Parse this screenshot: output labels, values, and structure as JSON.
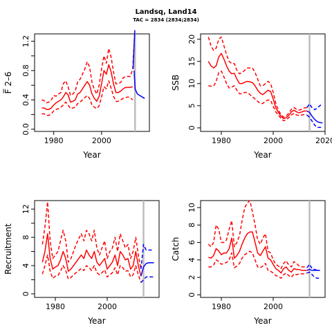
{
  "title": "Landsq, Land14",
  "subtitle": "TAC = 2834 (2834;2834)",
  "chart_data": [
    {
      "type": "line",
      "ylabel": "F̅ 2–6",
      "xlabel": "Year",
      "xlim": [
        1972,
        2020
      ],
      "ylim": [
        -0.03,
        1.3
      ],
      "xticks": [
        1980,
        2000
      ],
      "yticks": [
        0.0,
        0.2,
        0.4,
        0.6,
        0.8,
        1.0,
        1.2
      ],
      "ytick_labels": [
        "0.0",
        "",
        "0.4",
        "",
        "0.8",
        "",
        "1.2"
      ],
      "vline": 2014,
      "x": [
        1975,
        1976,
        1977,
        1978,
        1979,
        1980,
        1981,
        1982,
        1983,
        1984,
        1985,
        1986,
        1987,
        1988,
        1989,
        1990,
        1991,
        1992,
        1993,
        1994,
        1995,
        1996,
        1997,
        1998,
        1999,
        2000,
        2001,
        2002,
        2003,
        2004,
        2005,
        2006,
        2007,
        2008,
        2009,
        2010,
        2011,
        2012,
        2013
      ],
      "series": [
        {
          "values": [
            0.29,
            0.29,
            0.27,
            0.27,
            0.29,
            0.33,
            0.36,
            0.38,
            0.4,
            0.44,
            0.5,
            0.47,
            0.37,
            0.38,
            0.4,
            0.48,
            0.5,
            0.55,
            0.6,
            0.65,
            0.6,
            0.48,
            0.42,
            0.38,
            0.45,
            0.62,
            0.8,
            0.75,
            0.88,
            0.78,
            0.62,
            0.5,
            0.5,
            0.52,
            0.55,
            0.57,
            0.57,
            0.57,
            0.58
          ],
          "color": "#ff0000",
          "style": "solid"
        },
        {
          "values": [
            0.4,
            0.39,
            0.36,
            0.37,
            0.4,
            0.46,
            0.45,
            0.48,
            0.5,
            0.62,
            0.66,
            0.58,
            0.46,
            0.48,
            0.52,
            0.65,
            0.68,
            0.75,
            0.82,
            0.92,
            0.85,
            0.64,
            0.54,
            0.48,
            0.6,
            0.82,
            1.0,
            0.9,
            1.1,
            0.98,
            0.78,
            0.62,
            0.62,
            0.64,
            0.7,
            0.72,
            0.72,
            0.72,
            0.82
          ],
          "color": "#ff0000",
          "style": "dashed"
        },
        {
          "values": [
            0.21,
            0.21,
            0.19,
            0.19,
            0.21,
            0.25,
            0.27,
            0.28,
            0.3,
            0.33,
            0.37,
            0.33,
            0.28,
            0.29,
            0.3,
            0.35,
            0.37,
            0.4,
            0.43,
            0.46,
            0.42,
            0.33,
            0.3,
            0.28,
            0.32,
            0.44,
            0.58,
            0.55,
            0.66,
            0.56,
            0.45,
            0.38,
            0.38,
            0.4,
            0.42,
            0.43,
            0.44,
            0.43,
            0.4
          ],
          "color": "#ff0000",
          "style": "dashed"
        }
      ],
      "projection": [
        {
          "x": [
            2013.6,
            2014,
            2015,
            2016,
            2017,
            2018
          ],
          "values": [
            0.8,
            0.55,
            0.48,
            0.46,
            0.44,
            0.42
          ],
          "color": "#0000ff",
          "style": "solid"
        },
        {
          "x": [
            2013.2,
            2013.6,
            2013.9
          ],
          "values": [
            0.82,
            1.15,
            1.35
          ],
          "color": "#0000ff",
          "style": "solid"
        }
      ],
      "projection_upper_red": {
        "x": [
          2013,
          2013.5,
          2013.9
        ],
        "values": [
          0.82,
          1.1,
          1.35
        ]
      }
    },
    {
      "type": "line",
      "ylabel": "SSB",
      "xlabel": "Year",
      "xlim": [
        1972,
        2020
      ],
      "ylim": [
        -0.8,
        21.2
      ],
      "xticks": [
        1980,
        2000,
        2020
      ],
      "yticks": [
        0,
        5,
        10,
        15,
        20
      ],
      "ytick_labels": [
        "0",
        "5",
        "10",
        "15",
        "20"
      ],
      "vline": 2014,
      "x": [
        1975,
        1976,
        1977,
        1978,
        1979,
        1980,
        1981,
        1982,
        1983,
        1984,
        1985,
        1986,
        1987,
        1988,
        1989,
        1990,
        1991,
        1992,
        1993,
        1994,
        1995,
        1996,
        1997,
        1998,
        1999,
        2000,
        2001,
        2002,
        2003,
        2004,
        2005,
        2006,
        2007,
        2008,
        2009,
        2010,
        2011,
        2012,
        2013
      ],
      "series": [
        {
          "values": [
            15.0,
            14.0,
            13.5,
            14.0,
            16.0,
            16.8,
            15.5,
            14.0,
            12.8,
            12.2,
            12.3,
            11.0,
            10.0,
            10.0,
            10.3,
            10.5,
            10.4,
            10.2,
            9.5,
            8.5,
            7.8,
            7.5,
            8.0,
            8.5,
            8.2,
            6.5,
            4.5,
            3.5,
            2.6,
            2.1,
            2.3,
            2.8,
            3.6,
            4.0,
            3.6,
            3.4,
            3.6,
            3.8,
            3.8
          ],
          "color": "#ff0000",
          "style": "solid"
        },
        {
          "values": [
            20.5,
            18.5,
            17.5,
            18.0,
            20.0,
            20.5,
            18.5,
            16.5,
            15.0,
            14.5,
            14.5,
            13.0,
            12.2,
            12.5,
            13.0,
            13.5,
            13.5,
            13.5,
            12.5,
            11.0,
            9.5,
            9.5,
            10.0,
            10.5,
            10.0,
            8.0,
            5.5,
            4.0,
            3.0,
            2.4,
            2.7,
            3.3,
            4.2,
            4.6,
            4.2,
            4.0,
            4.2,
            4.5,
            4.6
          ],
          "color": "#ff0000",
          "style": "dashed"
        },
        {
          "values": [
            9.5,
            9.4,
            9.4,
            10.5,
            12.5,
            12.8,
            11.5,
            10.0,
            9.0,
            9.2,
            9.5,
            8.5,
            7.7,
            7.7,
            8.0,
            8.0,
            7.5,
            7.0,
            6.5,
            6.0,
            5.5,
            5.5,
            6.0,
            6.3,
            6.2,
            4.8,
            3.6,
            2.9,
            2.1,
            1.6,
            1.8,
            2.3,
            2.9,
            3.3,
            2.9,
            2.8,
            2.9,
            3.0,
            2.9
          ],
          "color": "#ff0000",
          "style": "dashed"
        }
      ],
      "projection": [
        {
          "x": [
            2013,
            2014,
            2015,
            2016,
            2017,
            2018,
            2019
          ],
          "values": [
            3.8,
            3.5,
            2.6,
            1.9,
            1.4,
            1.2,
            1.1
          ],
          "color": "#0000ff",
          "style": "solid"
        },
        {
          "x": [
            2013,
            2014,
            2015,
            2016,
            2017,
            2018,
            2019
          ],
          "values": [
            4.6,
            5.4,
            4.5,
            4.1,
            4.5,
            5.0,
            5.5
          ],
          "color": "#0000ff",
          "style": "dashed"
        },
        {
          "x": [
            2013,
            2014,
            2015,
            2016,
            2017,
            2018,
            2019
          ],
          "values": [
            2.9,
            2.4,
            1.5,
            0.6,
            0.1,
            0.1,
            0.1
          ],
          "color": "#0000ff",
          "style": "dashed"
        }
      ]
    },
    {
      "type": "line",
      "ylabel": "Recruitment",
      "xlabel": "Year",
      "xlim": [
        1972,
        2020
      ],
      "ylim": [
        -0.5,
        13.2
      ],
      "xticks": [
        1980,
        2000
      ],
      "yticks": [
        0,
        2,
        4,
        6,
        8,
        10,
        12
      ],
      "ytick_labels": [
        "0",
        "",
        "4",
        "",
        "8",
        "",
        "12"
      ],
      "vline": 2014,
      "x": [
        1975,
        1976,
        1977,
        1978,
        1979,
        1980,
        1981,
        1982,
        1983,
        1984,
        1985,
        1986,
        1987,
        1988,
        1989,
        1990,
        1991,
        1992,
        1993,
        1994,
        1995,
        1996,
        1997,
        1998,
        1999,
        2000,
        2001,
        2002,
        2003,
        2004,
        2005,
        2006,
        2007,
        2008,
        2009,
        2010,
        2011,
        2012,
        2013
      ],
      "series": [
        {
          "values": [
            4.5,
            6.0,
            8.5,
            5.0,
            3.5,
            3.8,
            4.0,
            4.8,
            6.0,
            5.0,
            3.2,
            3.5,
            4.0,
            4.5,
            5.0,
            5.5,
            5.0,
            6.2,
            5.5,
            5.0,
            6.0,
            4.5,
            4.0,
            4.5,
            5.0,
            3.5,
            4.0,
            4.5,
            5.5,
            4.0,
            6.0,
            5.5,
            4.8,
            5.0,
            3.5,
            4.0,
            6.0,
            4.0,
            2.5
          ],
          "color": "#ff0000",
          "style": "solid"
        },
        {
          "values": [
            7.0,
            9.5,
            13.0,
            7.5,
            5.0,
            5.5,
            6.0,
            7.5,
            9.0,
            7.5,
            4.5,
            5.0,
            6.0,
            7.0,
            7.8,
            8.5,
            7.5,
            9.0,
            8.5,
            7.5,
            9.0,
            6.5,
            5.5,
            6.5,
            7.5,
            5.0,
            6.0,
            6.5,
            8.0,
            6.0,
            8.5,
            7.5,
            6.5,
            7.0,
            5.0,
            6.0,
            8.0,
            5.5,
            3.5
          ],
          "color": "#ff0000",
          "style": "dashed"
        },
        {
          "values": [
            2.8,
            4.0,
            5.5,
            3.2,
            2.2,
            2.5,
            2.6,
            3.2,
            4.0,
            3.3,
            2.1,
            2.3,
            2.7,
            3.0,
            3.3,
            3.6,
            3.3,
            4.0,
            3.7,
            3.3,
            4.0,
            3.0,
            2.7,
            3.0,
            3.4,
            2.4,
            2.7,
            3.0,
            3.7,
            2.7,
            4.0,
            3.7,
            3.2,
            3.3,
            2.4,
            2.7,
            4.0,
            2.7,
            1.6
          ],
          "color": "#ff0000",
          "style": "dashed"
        }
      ],
      "projection": [
        {
          "x": [
            2013,
            2014,
            2015,
            2016,
            2017,
            2018
          ],
          "values": [
            2.5,
            3.8,
            4.3,
            4.4,
            4.4,
            4.4
          ],
          "color": "#0000ff",
          "style": "solid"
        },
        {
          "x": [
            2013,
            2014,
            2015,
            2016,
            2017,
            2018
          ],
          "values": [
            3.5,
            7.0,
            6.2,
            6.2,
            6.2,
            6.2
          ],
          "color": "#0000ff",
          "style": "dashed"
        },
        {
          "x": [
            2013,
            2014,
            2015,
            2016,
            2017,
            2018
          ],
          "values": [
            1.6,
            2.0,
            2.4,
            2.4,
            2.4,
            2.4
          ],
          "color": "#0000ff",
          "style": "dashed"
        }
      ]
    },
    {
      "type": "line",
      "ylabel": "Catch",
      "xlabel": "Year",
      "xlim": [
        1972,
        2020
      ],
      "ylim": [
        -0.3,
        10.8
      ],
      "xticks": [
        1980,
        2000
      ],
      "yticks": [
        0,
        2,
        4,
        6,
        8,
        10
      ],
      "ytick_labels": [
        "0",
        "2",
        "4",
        "6",
        "8",
        "10"
      ],
      "vline": 2014,
      "x": [
        1975,
        1976,
        1977,
        1978,
        1979,
        1980,
        1981,
        1982,
        1983,
        1984,
        1985,
        1986,
        1987,
        1988,
        1989,
        1990,
        1991,
        1992,
        1993,
        1994,
        1995,
        1996,
        1997,
        1998,
        1999,
        2000,
        2001,
        2002,
        2003,
        2004,
        2005,
        2006,
        2007,
        2008,
        2009,
        2010,
        2011,
        2012,
        2013
      ],
      "series": [
        {
          "values": [
            4.3,
            4.2,
            4.5,
            5.3,
            5.0,
            4.6,
            4.8,
            4.8,
            5.3,
            6.5,
            4.2,
            4.5,
            5.0,
            5.8,
            6.5,
            7.0,
            7.2,
            7.2,
            6.0,
            4.8,
            4.5,
            5.0,
            5.5,
            4.2,
            4.0,
            3.5,
            3.0,
            2.8,
            2.5,
            3.0,
            3.2,
            2.8,
            2.6,
            3.0,
            2.9,
            2.9,
            2.8,
            2.8,
            2.8
          ],
          "color": "#ff0000",
          "style": "solid"
        },
        {
          "values": [
            5.8,
            5.5,
            6.0,
            8.0,
            7.5,
            6.0,
            6.0,
            6.3,
            7.5,
            8.5,
            5.5,
            6.0,
            6.8,
            8.5,
            10.0,
            10.5,
            10.8,
            9.5,
            8.0,
            6.3,
            5.8,
            6.5,
            7.0,
            5.0,
            4.8,
            4.0,
            3.5,
            3.3,
            3.0,
            3.6,
            3.9,
            3.4,
            3.2,
            3.8,
            3.6,
            3.3,
            3.2,
            3.2,
            3.1
          ],
          "color": "#ff0000",
          "style": "dashed"
        },
        {
          "values": [
            3.2,
            3.2,
            3.4,
            4.0,
            3.8,
            3.5,
            3.6,
            3.7,
            4.0,
            4.8,
            3.1,
            3.3,
            3.6,
            4.2,
            4.6,
            4.8,
            5.0,
            4.8,
            4.0,
            3.2,
            3.1,
            3.3,
            3.6,
            2.8,
            2.7,
            2.5,
            2.2,
            2.1,
            1.9,
            2.3,
            2.5,
            2.2,
            2.0,
            2.4,
            2.3,
            2.4,
            2.4,
            2.4,
            2.5
          ],
          "color": "#ff0000",
          "style": "dashed"
        }
      ],
      "projection": [
        {
          "x": [
            2013,
            2014,
            2015,
            2016,
            2017,
            2018
          ],
          "values": [
            2.8,
            2.9,
            2.8,
            2.8,
            2.8,
            2.8
          ],
          "color": "#0000ff",
          "style": "solid"
        },
        {
          "x": [
            2013,
            2014,
            2015,
            2016,
            2017,
            2018
          ],
          "values": [
            3.1,
            3.5,
            3.0,
            2.9,
            2.8,
            2.8
          ],
          "color": "#0000ff",
          "style": "dashed"
        },
        {
          "x": [
            2013,
            2014,
            2015,
            2016,
            2017,
            2018
          ],
          "values": [
            2.5,
            2.6,
            2.3,
            2.0,
            1.9,
            1.9
          ],
          "color": "#0000ff",
          "style": "dashed"
        }
      ]
    }
  ]
}
